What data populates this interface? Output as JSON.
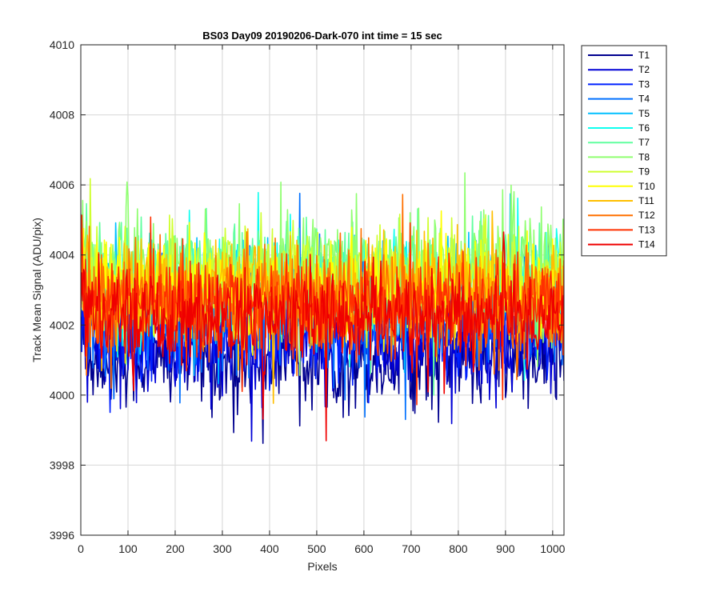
{
  "chart_data": {
    "type": "line",
    "title": "BS03 Day09 20190206-Dark-070 int time = 15 sec",
    "xlabel": "Pixels",
    "ylabel": "Track Mean Signal (ADU/pix)",
    "xlim": [
      0,
      1024
    ],
    "ylim": [
      3996,
      4010
    ],
    "xticks": [
      0,
      100,
      200,
      300,
      400,
      500,
      600,
      700,
      800,
      900,
      1000
    ],
    "yticks": [
      3996,
      3998,
      4000,
      4002,
      4004,
      4006,
      4008,
      4010
    ],
    "grid": true,
    "legend_position": "outside-top-right",
    "series": [
      {
        "name": "T1",
        "color": "#00008f",
        "mean": 4001.0,
        "spread": 0.9
      },
      {
        "name": "T2",
        "color": "#0000d6",
        "mean": 4001.4,
        "spread": 0.9
      },
      {
        "name": "T3",
        "color": "#0020ff",
        "mean": 4001.9,
        "spread": 0.9
      },
      {
        "name": "T4",
        "color": "#0070ff",
        "mean": 4002.3,
        "spread": 0.9
      },
      {
        "name": "T5",
        "color": "#00bfff",
        "mean": 4002.8,
        "spread": 0.9
      },
      {
        "name": "T6",
        "color": "#10ffef",
        "mean": 4003.2,
        "spread": 0.9
      },
      {
        "name": "T7",
        "color": "#60ff9f",
        "mean": 4003.5,
        "spread": 0.9
      },
      {
        "name": "T8",
        "color": "#8fff70",
        "mean": 4003.6,
        "spread": 1.0
      },
      {
        "name": "T9",
        "color": "#cfff30",
        "mean": 4003.3,
        "spread": 0.9
      },
      {
        "name": "T10",
        "color": "#ffff00",
        "mean": 4003.0,
        "spread": 1.0
      },
      {
        "name": "T11",
        "color": "#ffbf00",
        "mean": 4002.9,
        "spread": 1.0
      },
      {
        "name": "T12",
        "color": "#ff7000",
        "mean": 4002.7,
        "spread": 1.0
      },
      {
        "name": "T13",
        "color": "#ff3000",
        "mean": 4002.5,
        "spread": 0.9
      },
      {
        "name": "T14",
        "color": "#ef0000",
        "mean": 4002.2,
        "spread": 0.9
      }
    ]
  }
}
